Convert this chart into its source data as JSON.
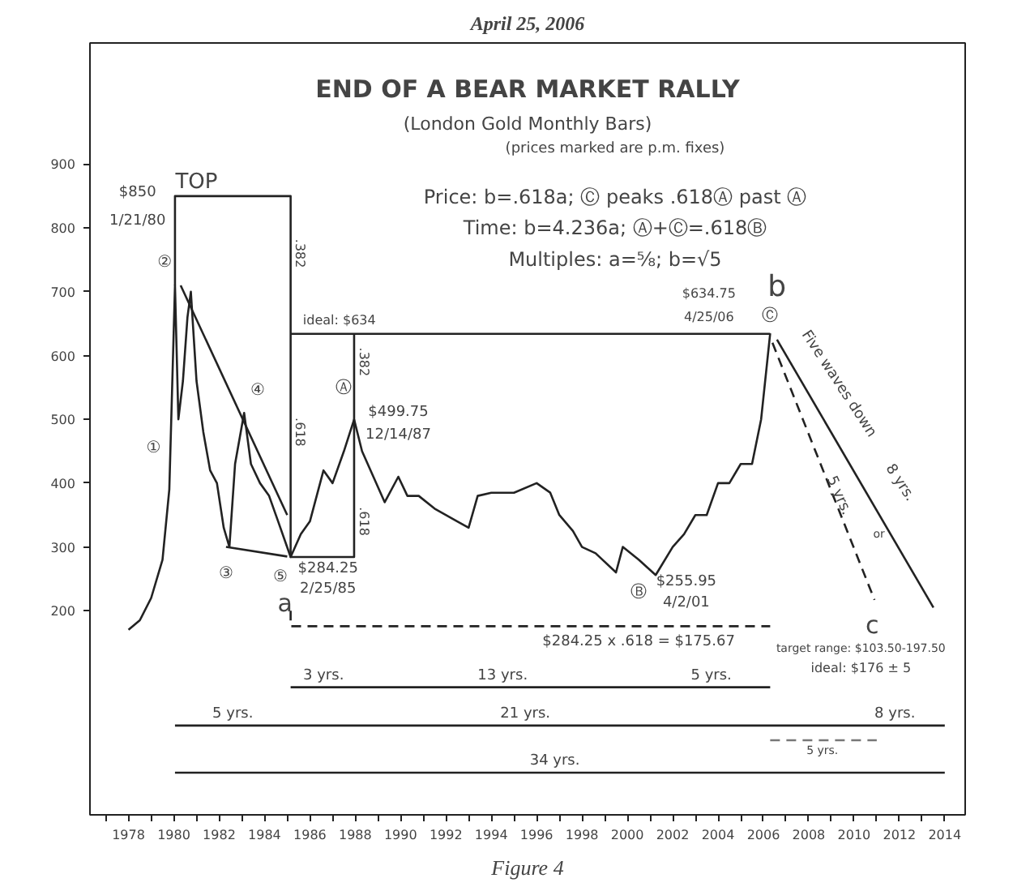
{
  "chart_data": {
    "type": "line",
    "title": "END OF A BEAR MARKET RALLY",
    "subtitle": "(London Gold Monthly Bars)",
    "xlim": [
      1976.3,
      2014.9
    ],
    "ylim": [
      -120,
      1090
    ],
    "xticks": [
      {
        "value": 1977,
        "label": null
      },
      1978,
      {
        "value": 1979,
        "label": null
      },
      1980,
      {
        "value": 1981,
        "label": null
      },
      1982,
      {
        "value": 1983,
        "label": null
      },
      1984,
      {
        "value": 1985,
        "label": null
      },
      1986,
      {
        "value": 1987,
        "label": null
      },
      1988,
      {
        "value": 1989,
        "label": null
      },
      1990,
      {
        "value": 1991,
        "label": null
      },
      1992,
      {
        "value": 1993,
        "label": null
      },
      1994,
      {
        "value": 1995,
        "label": null
      },
      1996,
      {
        "value": 1997,
        "label": null
      },
      1998,
      {
        "value": 1999,
        "label": null
      },
      2000,
      {
        "value": 2001,
        "label": null
      },
      2002,
      {
        "value": 2003,
        "label": null
      },
      2004,
      {
        "value": 2005,
        "label": null
      },
      2006,
      {
        "value": 2007,
        "label": null
      },
      2008,
      {
        "value": 2009,
        "label": null
      },
      2010,
      {
        "value": 2011,
        "label": null
      },
      2012,
      {
        "value": 2013,
        "label": null
      },
      2014
    ],
    "yticks": [
      200,
      300,
      400,
      500,
      600,
      700,
      800,
      900
    ],
    "grid": false,
    "marker": "none",
    "series": [
      {
        "color": "#222222",
        "x": [
          1978.0,
          1978.5,
          1979.0,
          1979.5,
          1979.8,
          1980.05,
          1980.2,
          1980.4,
          1980.6,
          1980.75,
          1981.0,
          1981.3,
          1981.6,
          1981.9,
          1982.2,
          1982.45,
          1982.7,
          1983.1,
          1983.4,
          1983.8,
          1984.2,
          1984.6,
          1985.15,
          1985.6,
          1986.0,
          1986.6,
          1987.0,
          1987.5,
          1987.95,
          1988.3,
          1988.8,
          1989.3,
          1989.9,
          1990.3,
          1990.8,
          1991.5,
          1992.5,
          1993.0,
          1993.4,
          1994.0,
          1995.0,
          1996.0,
          1996.6,
          1997.0,
          1997.6,
          1998.0,
          1998.6,
          1999.5,
          1999.8,
          2000.5,
          2001.25,
          2002.0,
          2002.5,
          2003.0,
          2003.5,
          2004.0,
          2004.5,
          2005.0,
          2005.5,
          2005.9,
          2006.3
        ],
        "values": [
          170,
          185,
          220,
          280,
          390,
          710,
          500,
          560,
          660,
          700,
          560,
          480,
          420,
          400,
          330,
          300,
          430,
          510,
          430,
          400,
          380,
          340,
          284.25,
          320,
          340,
          420,
          400,
          450,
          499.75,
          450,
          410,
          370,
          410,
          380,
          380,
          360,
          340,
          330,
          380,
          385,
          385,
          400,
          385,
          350,
          325,
          300,
          290,
          260,
          300,
          280,
          255.95,
          300,
          320,
          350,
          350,
          400,
          400,
          430,
          430,
          500,
          634.75
        ]
      },
      {
        "color": "#222222",
        "x": [
          1980.05,
          1980.05,
          1985.15,
          1985.15,
          1987.95,
          1987.95,
          1985.15,
          2006.3
        ],
        "values": [
          710,
          850,
          850,
          284.25,
          284.25,
          634,
          634,
          634
        ]
      },
      {
        "color": "#222222",
        "x": [
          1980.3,
          1985.0
        ],
        "values": [
          710,
          350
        ]
      },
      {
        "color": "#222222",
        "x": [
          1982.3,
          1985.0
        ],
        "values": [
          300,
          285
        ]
      },
      {
        "color": "#222222",
        "line_style": "dashed",
        "x": [
          1985.15,
          1985.15,
          2006.3
        ],
        "values": [
          200,
          175.67,
          175.67
        ]
      },
      {
        "color": "#222222",
        "line_style": "dashed",
        "x": [
          2006.4,
          2010.9
        ],
        "values": [
          620,
          217
        ]
      },
      {
        "color": "#222222",
        "x": [
          2006.6,
          2013.5
        ],
        "values": [
          625,
          205
        ]
      },
      {
        "color": "#222222",
        "x": [
          1985.15,
          2006.3
        ],
        "values": [
          80,
          80
        ]
      },
      {
        "color": "#222222",
        "x": [
          1980.05,
          2014.0
        ],
        "values": [
          20,
          20
        ]
      },
      {
        "color": "#777777",
        "line_style": "dashed",
        "x": [
          2006.3,
          2011.0
        ],
        "values": [
          -3,
          -3
        ]
      },
      {
        "color": "#222222",
        "x": [
          1980.05,
          2014.0
        ],
        "values": [
          -54,
          -54
        ]
      }
    ],
    "annotations": [
      "April 25, 2006",
      "(prices marked are p.m. fixes)",
      "Price: b=.618a; Ⓒ peaks .618Ⓐ past Ⓐ",
      "Time: b=4.236a; Ⓐ+Ⓒ=.618Ⓑ",
      "Multiples: a=⅝; b=√5",
      "Figure 4",
      "$850",
      "TOP",
      "1/21/80",
      "②",
      "①",
      "③",
      "④",
      "⑤",
      "a",
      "$284.25",
      "2/25/85",
      ".382",
      ".618",
      ".382",
      ".618",
      "ideal: $634",
      "Ⓐ",
      "$499.75",
      "12/14/87",
      "Ⓑ",
      "$255.95",
      "4/2/01",
      "$634.75",
      "4/25/06",
      "b",
      "Ⓒ",
      "Five waves down",
      "8 yrs.",
      "5 yrs.",
      "or",
      "c",
      {
        "text": "$284.25 x .618 = $175.67",
        "x": 2000.5,
        "y": 175.67
      },
      "target range: $103.50-197.50",
      "ideal: $176 ± 5",
      "3 yrs.",
      "13 yrs.",
      "5 yrs.",
      "5 yrs.",
      "21 yrs.",
      "8 yrs.",
      "5 yrs.",
      "34 yrs."
    ]
  }
}
